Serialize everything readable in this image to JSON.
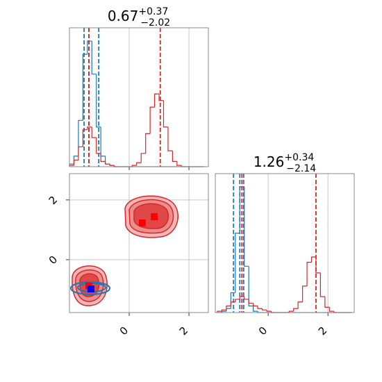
{
  "chart_data": [
    {
      "type": "histogram",
      "title": {
        "value": "0.67",
        "upper": "+0.37",
        "lower": "−2.02"
      },
      "bins": [
        -2.0,
        -1.85,
        -1.7,
        -1.55,
        -1.4,
        -1.25,
        -1.1,
        -0.95,
        -0.8,
        -0.65,
        -0.5,
        -0.35,
        -0.2,
        -0.05,
        0.1,
        0.25,
        0.4,
        0.55,
        0.7,
        0.85,
        1.0,
        1.15,
        1.3,
        1.45,
        1.6,
        1.75,
        1.9,
        2.05,
        2.2,
        2.35,
        2.5
      ],
      "series": [
        {
          "color": "#1f77b4",
          "values": [
            0.02,
            0.08,
            0.35,
            0.85,
            0.95,
            0.7,
            0.3,
            0.08,
            0.02,
            0.01,
            0,
            0,
            0,
            0,
            0,
            0,
            0,
            0,
            0,
            0,
            0,
            0,
            0,
            0,
            0,
            0,
            0,
            0,
            0,
            0
          ],
          "quantiles": [
            -1.51,
            -1.35,
            -1.02
          ]
        },
        {
          "color": "#d62728",
          "values": [
            0.01,
            0.05,
            0.15,
            0.28,
            0.3,
            0.22,
            0.1,
            0.04,
            0.02,
            0.01,
            0,
            0,
            0,
            0,
            0.01,
            0.03,
            0.1,
            0.25,
            0.45,
            0.55,
            0.5,
            0.3,
            0.12,
            0.04,
            0.01,
            0,
            0,
            0,
            0,
            0
          ],
          "quantiles": [
            -1.35,
            1.04
          ]
        }
      ],
      "xlim": [
        -2.0,
        2.65
      ],
      "ylim": [
        0,
        1.05
      ],
      "xticks": [
        0,
        2
      ],
      "grid": true
    },
    {
      "type": "scatter",
      "series": [
        {
          "color": "#ff0000",
          "x": [
            0.84,
            0.44,
            -1.35
          ],
          "values": [
            1.44,
            1.23,
            -0.88
          ]
        },
        {
          "color": "#0000ff",
          "x": [
            -1.28
          ],
          "values": [
            -0.98
          ]
        }
      ],
      "xlim": [
        -2.0,
        2.65
      ],
      "ylim": [
        -1.77,
        2.88
      ],
      "xticks": [
        0,
        2
      ],
      "yticks": [
        0,
        2
      ],
      "grid": true
    },
    {
      "type": "histogram",
      "title": {
        "value": "1.26",
        "upper": "+0.34",
        "lower": "−2.14"
      },
      "bins": [
        -1.7,
        -1.55,
        -1.4,
        -1.25,
        -1.1,
        -0.95,
        -0.8,
        -0.65,
        -0.5,
        -0.35,
        -0.2,
        -0.05,
        0.1,
        0.25,
        0.4,
        0.55,
        0.7,
        0.85,
        1.0,
        1.15,
        1.3,
        1.45,
        1.6,
        1.75,
        1.9,
        2.05,
        2.2,
        2.35,
        2.5,
        2.65,
        2.8
      ],
      "series": [
        {
          "color": "#1f77b4",
          "values": [
            0,
            0.01,
            0.03,
            0.15,
            0.6,
            0.95,
            0.35,
            0.05,
            0.01,
            0,
            0,
            0,
            0,
            0,
            0,
            0,
            0,
            0,
            0,
            0,
            0,
            0,
            0,
            0,
            0,
            0,
            0,
            0,
            0,
            0
          ],
          "quantiles": [
            -1.16,
            -0.95,
            -0.82
          ]
        },
        {
          "color": "#d62728",
          "values": [
            0.01,
            0.02,
            0.05,
            0.08,
            0.1,
            0.12,
            0.1,
            0.07,
            0.05,
            0.03,
            0.02,
            0.01,
            0,
            0,
            0,
            0,
            0.01,
            0.03,
            0.08,
            0.2,
            0.38,
            0.42,
            0.3,
            0.12,
            0.04,
            0.01,
            0,
            0,
            0,
            0
          ],
          "quantiles": [
            -0.88,
            1.6
          ]
        }
      ],
      "xlim": [
        -1.77,
        2.88
      ],
      "ylim": [
        0,
        1.05
      ],
      "xticks": [
        0,
        2
      ],
      "grid": true
    }
  ]
}
